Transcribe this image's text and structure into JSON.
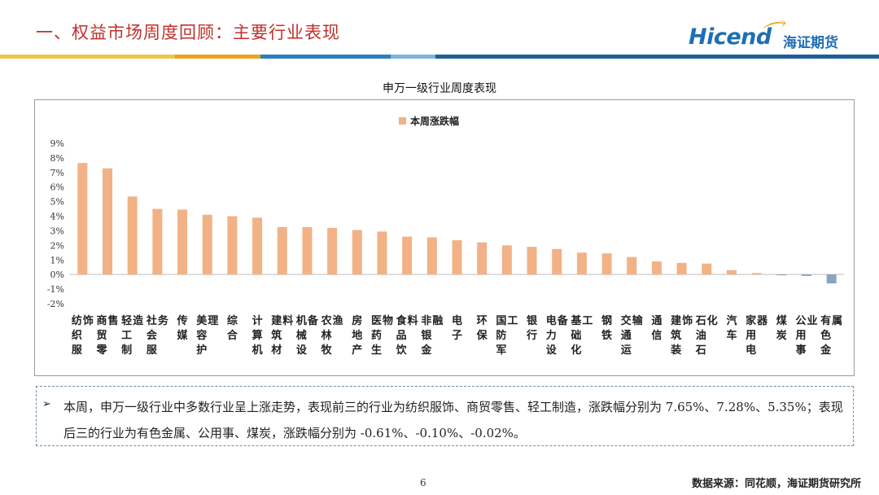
{
  "header": {
    "title": "一、权益市场周度回顾：主要行业表现",
    "logo_en": "Hicend",
    "logo_cn": "海证期货"
  },
  "chart_data": {
    "type": "bar",
    "title": "申万一级行业周度表现",
    "legend": [
      "本周涨跌幅"
    ],
    "legend_position": "top-left",
    "ylim": [
      -2,
      9
    ],
    "yticks": [
      "-2%",
      "-1%",
      "0%",
      "1%",
      "2%",
      "3%",
      "4%",
      "5%",
      "6%",
      "7%",
      "8%",
      "9%"
    ],
    "categories": [
      "纺织服饰",
      "商贸零售",
      "轻工制造",
      "社会服务",
      "传媒",
      "美容护理",
      "综合",
      "计算机",
      "建筑材料",
      "机械设备",
      "农林牧渔",
      "房地产",
      "医药生物",
      "食品饮料",
      "非银金融",
      "电子",
      "环保",
      "国防军工",
      "银行",
      "电力设备",
      "基础化工",
      "钢铁",
      "交通运输",
      "通信",
      "建筑装饰",
      "石油石化",
      "汽车",
      "家用电器",
      "煤炭",
      "公用事业",
      "有色金属"
    ],
    "series": [
      {
        "name": "本周涨跌幅",
        "values": [
          7.65,
          7.28,
          5.35,
          4.5,
          4.45,
          4.1,
          4.0,
          3.9,
          3.25,
          3.25,
          3.2,
          3.05,
          2.95,
          2.6,
          2.55,
          2.35,
          2.2,
          2.0,
          1.9,
          1.75,
          1.5,
          1.45,
          1.2,
          0.9,
          0.8,
          0.75,
          0.3,
          0.1,
          -0.02,
          -0.1,
          -0.61
        ]
      }
    ],
    "colors": {
      "positive": "#f2b285",
      "negative": "#8aa4c4"
    },
    "grid": false
  },
  "note": {
    "arrow": "➢",
    "text": "本周，申万一级行业中多数行业呈上涨走势，表现前三的行业为纺织服饰、商贸零售、轻工制造，涨跌幅分别为 7.65%、7.28%、5.35%；表现后三的行业为有色金属、公用事、煤炭，涨跌幅分别为 -0.61%、-0.10%、-0.02%。"
  },
  "footer": {
    "page_number": "6",
    "source": "数据来源：同花顺，海证期货研究所"
  }
}
